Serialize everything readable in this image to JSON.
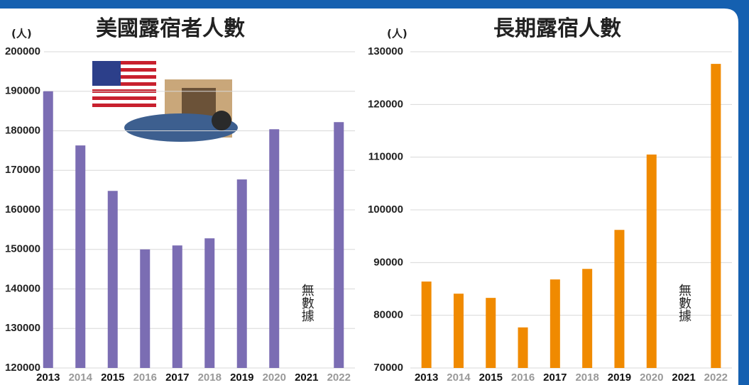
{
  "chart_data": [
    {
      "type": "bar",
      "title": "美國露宿者人數",
      "y_unit": "(人)",
      "categories": [
        "2013",
        "2014",
        "2015",
        "2016",
        "2017",
        "2018",
        "2019",
        "2020",
        "2021",
        "2022"
      ],
      "values": [
        190000,
        176300,
        164800,
        150000,
        151000,
        152800,
        167700,
        180400,
        null,
        182200
      ],
      "color": "#7b6db3",
      "annotation": "無數據",
      "ylim": [
        120000,
        200000
      ],
      "yticks": [
        120000,
        130000,
        140000,
        150000,
        160000,
        170000,
        180000,
        190000,
        200000
      ],
      "grid": true
    },
    {
      "type": "bar",
      "title": "長期露宿人數",
      "y_unit": "(人)",
      "categories": [
        "2013",
        "2014",
        "2015",
        "2016",
        "2017",
        "2018",
        "2019",
        "2020",
        "2021",
        "2022"
      ],
      "values": [
        86400,
        84100,
        83300,
        77700,
        86800,
        88800,
        96200,
        110500,
        null,
        127700
      ],
      "color": "#f08a00",
      "annotation": "無數據",
      "ylim": [
        70000,
        130000
      ],
      "yticks": [
        70000,
        80000,
        90000,
        100000,
        110000,
        120000,
        130000
      ],
      "grid": true
    }
  ]
}
